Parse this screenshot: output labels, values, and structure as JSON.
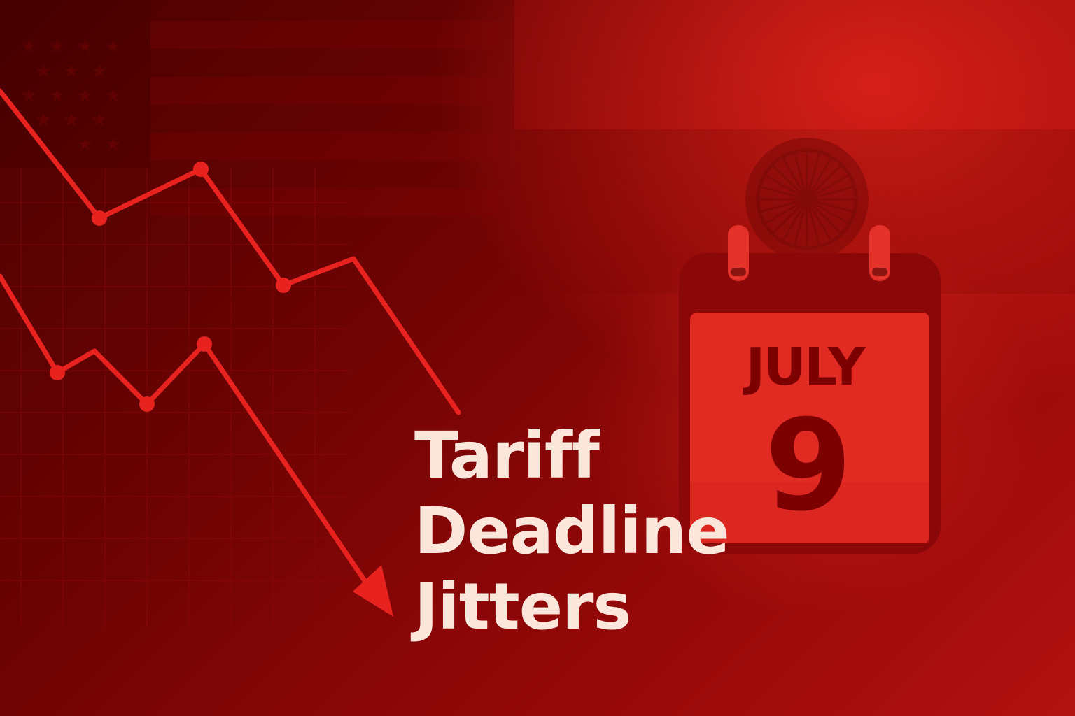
{
  "headline": {
    "line1": "Tariff",
    "line2": "Deadline",
    "line3": "Jitters"
  },
  "calendar": {
    "month": "JULY",
    "day": "9"
  },
  "icons": [
    "us-flag-icon",
    "india-flag-icon",
    "ashoka-chakra-icon",
    "calendar-icon",
    "down-arrow-icon"
  ],
  "colors": {
    "background_dark": "#4a0000",
    "background_light": "#b31212",
    "line": "#e8231f",
    "calendar_page": "#e02a22",
    "calendar_header": "#8a0808",
    "calendar_text": "#7d0000",
    "headline_text": "#fbe6dc"
  }
}
